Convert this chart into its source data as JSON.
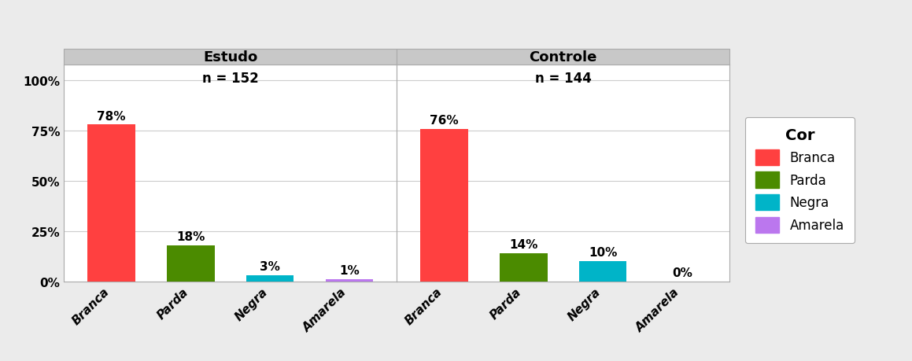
{
  "panels": [
    {
      "title": "Estudo",
      "n_label": "n = 152",
      "categories": [
        "Branca",
        "Parda",
        "Negra",
        "Amarela"
      ],
      "values": [
        78,
        18,
        3,
        1
      ],
      "colors": [
        "#FF4040",
        "#4B8B00",
        "#00B4C8",
        "#BB77EE"
      ]
    },
    {
      "title": "Controle",
      "n_label": "n = 144",
      "categories": [
        "Branca",
        "Parda",
        "Negra",
        "Amarela"
      ],
      "values": [
        76,
        14,
        10,
        0
      ],
      "colors": [
        "#FF4040",
        "#4B8B00",
        "#00B4C8",
        "#BB77EE"
      ]
    }
  ],
  "legend_title": "Cor",
  "legend_labels": [
    "Branca",
    "Parda",
    "Negra",
    "Amarela"
  ],
  "legend_colors": [
    "#FF4040",
    "#4B8B00",
    "#00B4C8",
    "#BB77EE"
  ],
  "ylim": [
    0,
    108
  ],
  "yticks": [
    0,
    25,
    50,
    75,
    100
  ],
  "ytick_labels": [
    "0%",
    "25%",
    "50%",
    "75%",
    "100%"
  ],
  "outer_bg": "#EBEBEB",
  "panel_bg": "#FFFFFF",
  "header_bg": "#C8C8C8",
  "bar_width": 0.6,
  "title_fontsize": 13,
  "label_fontsize": 11,
  "tick_fontsize": 11,
  "annot_fontsize": 11,
  "n_label_fontsize": 12
}
